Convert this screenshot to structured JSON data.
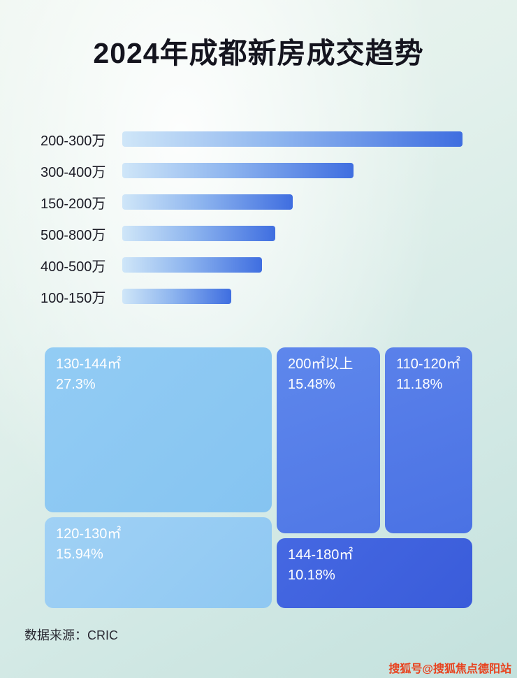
{
  "page": {
    "title": "2024年成都新房成交趋势",
    "footer_source": "数据来源：CRIC",
    "watermark": "搜狐号@搜狐焦点德阳站"
  },
  "colors": {
    "bar_gradient_start": "#cfe6f8",
    "bar_gradient_end": "#3f6ee0",
    "treemap_light_blue": "#8ccaf3",
    "treemap_medium_blue": "#5078e6",
    "treemap_dark_blue": "#3a5cda",
    "watermark_red": "#e8431f",
    "title_color": "#14141e"
  },
  "chart_data": [
    {
      "type": "bar",
      "orientation": "horizontal",
      "title": "",
      "xlabel": "",
      "ylabel": "",
      "categories": [
        "200-300万",
        "300-400万",
        "150-200万",
        "500-800万",
        "400-500万",
        "100-150万"
      ],
      "values": [
        100,
        68,
        50,
        45,
        41,
        32
      ],
      "value_note": "no numeric labels shown; values are relative bar lengths in % of longest bar",
      "legend": "none",
      "grid": "off"
    },
    {
      "type": "treemap",
      "title": "",
      "items": [
        {
          "label": "130-144㎡",
          "pct_label": "27.3%",
          "value": 27.3
        },
        {
          "label": "120-130㎡",
          "pct_label": "15.94%",
          "value": 15.94
        },
        {
          "label": "200㎡以上",
          "pct_label": "15.48%",
          "value": 15.48
        },
        {
          "label": "110-120㎡",
          "pct_label": "11.18%",
          "value": 11.18
        },
        {
          "label": "144-180㎡",
          "pct_label": "10.18%",
          "value": 10.18
        }
      ]
    }
  ]
}
